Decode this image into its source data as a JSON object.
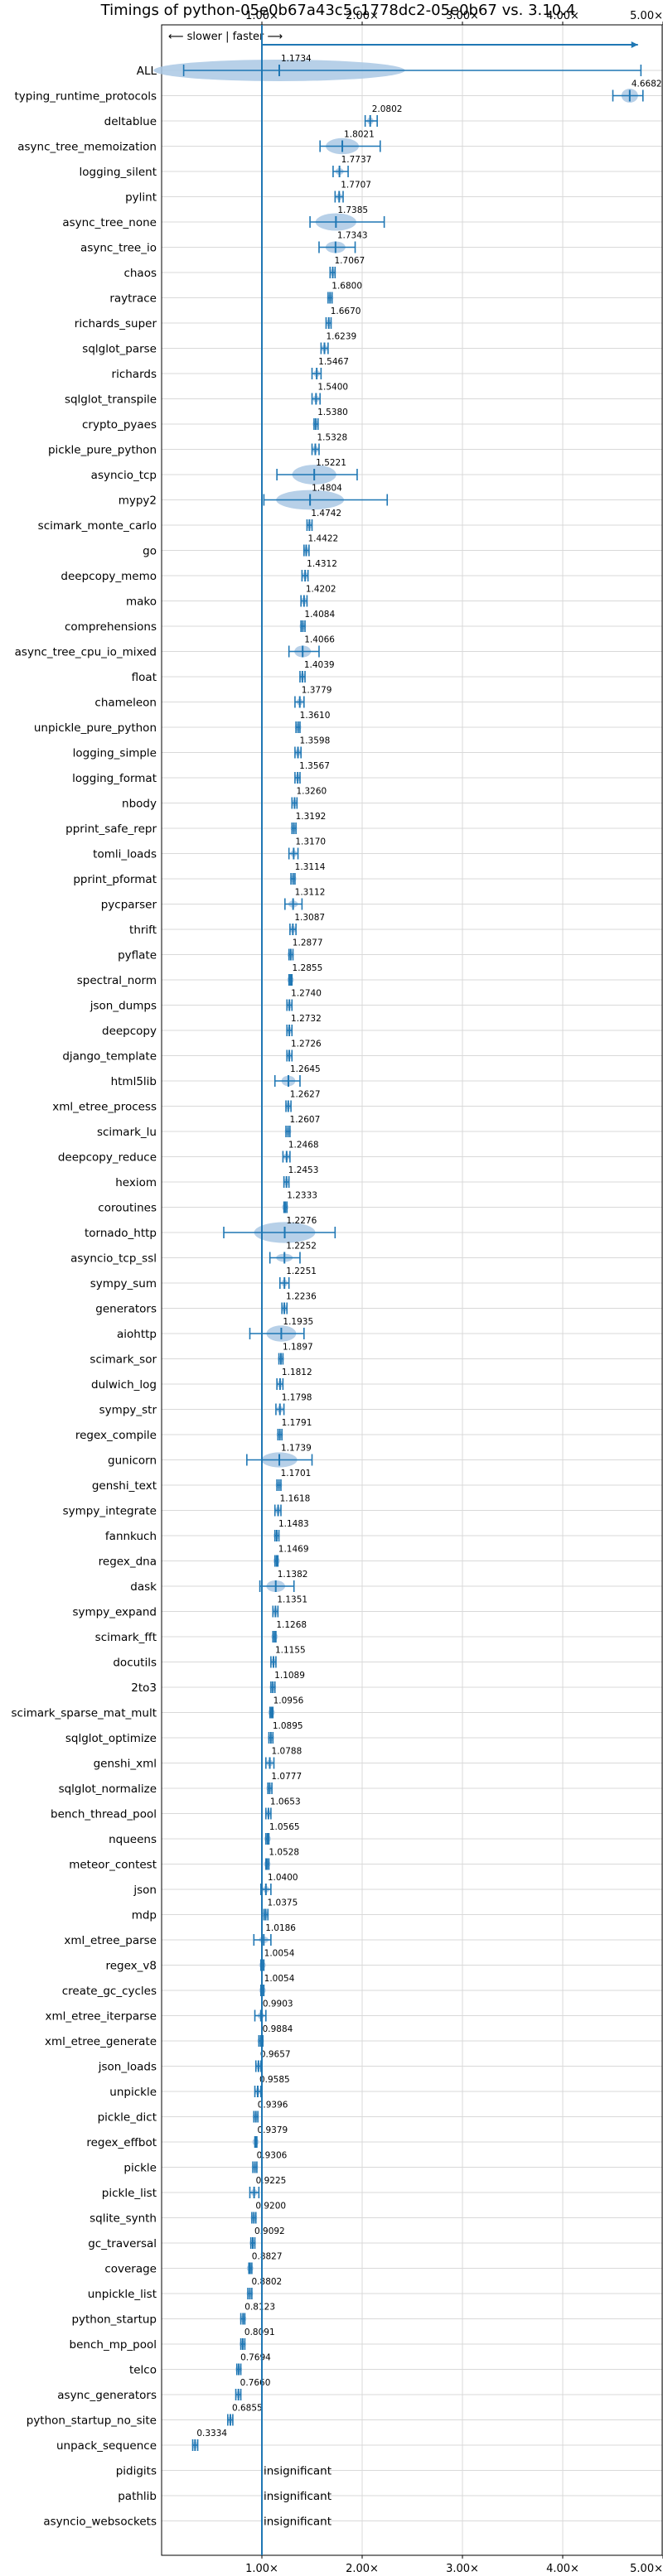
{
  "chart_data": {
    "type": "violin",
    "title": "Timings of python-05e0b67a43c5c1778dc2-05e0b67 vs. 3.10.4",
    "direction_label": "⟵ slower | faster ⟶",
    "xlim": [
      0.0,
      5.0
    ],
    "x_ticks": [
      1.0,
      2.0,
      3.0,
      4.0,
      5.0
    ],
    "x_tick_labels": [
      "1.00×",
      "2.00×",
      "3.00×",
      "4.00×",
      "5.00×"
    ],
    "insignificant_label": "insignificant",
    "colors": {
      "violin": "#aac8e4",
      "line": "#1f77b4",
      "outlier": "#d62728"
    },
    "benchmarks": [
      {
        "name": "ALL",
        "value": 1.1734,
        "label": "1.1734",
        "min": 0.22,
        "max": 4.78,
        "spread": 0.35
      },
      {
        "name": "typing_runtime_protocols",
        "value": 4.6682,
        "label": "4.6682",
        "min": 4.5,
        "max": 4.8,
        "spread": 0.12
      },
      {
        "name": "deltablue",
        "value": 2.0802,
        "label": "2.0802",
        "min": 2.03,
        "max": 2.15,
        "spread": 0.05
      },
      {
        "name": "async_tree_memoization",
        "value": 1.8021,
        "label": "1.8021",
        "min": 1.58,
        "max": 2.18,
        "spread": 0.14
      },
      {
        "name": "logging_silent",
        "value": 1.7737,
        "label": "1.7737",
        "min": 1.71,
        "max": 1.86,
        "spread": 0.05
      },
      {
        "name": "pylint",
        "value": 1.7707,
        "label": "1.7707",
        "min": 1.73,
        "max": 1.81,
        "spread": 0.04
      },
      {
        "name": "async_tree_none",
        "value": 1.7385,
        "label": "1.7385",
        "min": 1.48,
        "max": 2.22,
        "spread": 0.15
      },
      {
        "name": "async_tree_io",
        "value": 1.7343,
        "label": "1.7343",
        "min": 1.57,
        "max": 1.93,
        "spread": 0.1
      },
      {
        "name": "chaos",
        "value": 1.7067,
        "label": "1.7067",
        "min": 1.68,
        "max": 1.73,
        "spread": 0.03
      },
      {
        "name": "raytrace",
        "value": 1.68,
        "label": "1.6800",
        "min": 1.66,
        "max": 1.7,
        "spread": 0.03
      },
      {
        "name": "richards_super",
        "value": 1.667,
        "label": "1.6670",
        "min": 1.64,
        "max": 1.69,
        "spread": 0.03
      },
      {
        "name": "sqlglot_parse",
        "value": 1.6239,
        "label": "1.6239",
        "min": 1.59,
        "max": 1.66,
        "spread": 0.04
      },
      {
        "name": "richards",
        "value": 1.5467,
        "label": "1.5467",
        "min": 1.5,
        "max": 1.59,
        "spread": 0.04
      },
      {
        "name": "sqlglot_transpile",
        "value": 1.54,
        "label": "1.5400",
        "min": 1.5,
        "max": 1.58,
        "spread": 0.04
      },
      {
        "name": "crypto_pyaes",
        "value": 1.538,
        "label": "1.5380",
        "min": 1.52,
        "max": 1.56,
        "spread": 0.03
      },
      {
        "name": "pickle_pure_python",
        "value": 1.5328,
        "label": "1.5328",
        "min": 1.5,
        "max": 1.57,
        "spread": 0.03
      },
      {
        "name": "asyncio_tcp",
        "value": 1.5221,
        "label": "1.5221",
        "min": 1.15,
        "max": 1.95,
        "spread": 0.17
      },
      {
        "name": "mypy2",
        "value": 1.4804,
        "label": "1.4804",
        "min": 1.02,
        "max": 2.25,
        "spread": 0.17
      },
      {
        "name": "scimark_monte_carlo",
        "value": 1.4742,
        "label": "1.4742",
        "min": 1.45,
        "max": 1.5,
        "spread": 0.03
      },
      {
        "name": "go",
        "value": 1.4422,
        "label": "1.4422",
        "min": 1.42,
        "max": 1.47,
        "spread": 0.03
      },
      {
        "name": "deepcopy_memo",
        "value": 1.4312,
        "label": "1.4312",
        "min": 1.4,
        "max": 1.46,
        "spread": 0.03
      },
      {
        "name": "mako",
        "value": 1.4202,
        "label": "1.4202",
        "min": 1.39,
        "max": 1.45,
        "spread": 0.03
      },
      {
        "name": "comprehensions",
        "value": 1.4084,
        "label": "1.4084",
        "min": 1.39,
        "max": 1.43,
        "spread": 0.02
      },
      {
        "name": "async_tree_cpu_io_mixed",
        "value": 1.4066,
        "label": "1.4066",
        "min": 1.27,
        "max": 1.57,
        "spread": 0.1
      },
      {
        "name": "float",
        "value": 1.4039,
        "label": "1.4039",
        "min": 1.38,
        "max": 1.43,
        "spread": 0.03
      },
      {
        "name": "chameleon",
        "value": 1.3779,
        "label": "1.3779",
        "min": 1.33,
        "max": 1.42,
        "spread": 0.04
      },
      {
        "name": "unpickle_pure_python",
        "value": 1.361,
        "label": "1.3610",
        "min": 1.34,
        "max": 1.38,
        "spread": 0.02
      },
      {
        "name": "logging_simple",
        "value": 1.3598,
        "label": "1.3598",
        "min": 1.33,
        "max": 1.39,
        "spread": 0.03
      },
      {
        "name": "logging_format",
        "value": 1.3567,
        "label": "1.3567",
        "min": 1.33,
        "max": 1.38,
        "spread": 0.03
      },
      {
        "name": "nbody",
        "value": 1.326,
        "label": "1.3260",
        "min": 1.3,
        "max": 1.35,
        "spread": 0.02
      },
      {
        "name": "pprint_safe_repr",
        "value": 1.3192,
        "label": "1.3192",
        "min": 1.3,
        "max": 1.34,
        "spread": 0.02
      },
      {
        "name": "tomli_loads",
        "value": 1.317,
        "label": "1.3170",
        "min": 1.27,
        "max": 1.36,
        "spread": 0.04
      },
      {
        "name": "pprint_pformat",
        "value": 1.3114,
        "label": "1.3114",
        "min": 1.29,
        "max": 1.33,
        "spread": 0.02
      },
      {
        "name": "pycparser",
        "value": 1.3112,
        "label": "1.3112",
        "min": 1.23,
        "max": 1.4,
        "spread": 0.06
      },
      {
        "name": "thrift",
        "value": 1.3087,
        "label": "1.3087",
        "min": 1.28,
        "max": 1.34,
        "spread": 0.03
      },
      {
        "name": "pyflate",
        "value": 1.2877,
        "label": "1.2877",
        "min": 1.27,
        "max": 1.31,
        "spread": 0.02
      },
      {
        "name": "spectral_norm",
        "value": 1.2855,
        "label": "1.2855",
        "min": 1.27,
        "max": 1.3,
        "spread": 0.02
      },
      {
        "name": "json_dumps",
        "value": 1.274,
        "label": "1.2740",
        "min": 1.25,
        "max": 1.3,
        "spread": 0.02
      },
      {
        "name": "deepcopy",
        "value": 1.2732,
        "label": "1.2732",
        "min": 1.25,
        "max": 1.3,
        "spread": 0.02
      },
      {
        "name": "django_template",
        "value": 1.2726,
        "label": "1.2726",
        "min": 1.25,
        "max": 1.3,
        "spread": 0.02
      },
      {
        "name": "html5lib",
        "value": 1.2645,
        "label": "1.2645",
        "min": 1.13,
        "max": 1.38,
        "spread": 0.09
      },
      {
        "name": "xml_etree_process",
        "value": 1.2627,
        "label": "1.2627",
        "min": 1.24,
        "max": 1.29,
        "spread": 0.02
      },
      {
        "name": "scimark_lu",
        "value": 1.2607,
        "label": "1.2607",
        "min": 1.24,
        "max": 1.28,
        "spread": 0.02
      },
      {
        "name": "deepcopy_reduce",
        "value": 1.2468,
        "label": "1.2468",
        "min": 1.21,
        "max": 1.28,
        "spread": 0.03
      },
      {
        "name": "hexiom",
        "value": 1.2453,
        "label": "1.2453",
        "min": 1.22,
        "max": 1.27,
        "spread": 0.02
      },
      {
        "name": "coroutines",
        "value": 1.2333,
        "label": "1.2333",
        "min": 1.22,
        "max": 1.25,
        "spread": 0.01
      },
      {
        "name": "tornado_http",
        "value": 1.2276,
        "label": "1.2276",
        "min": 0.62,
        "max": 1.73,
        "spread": 0.18
      },
      {
        "name": "asyncio_tcp_ssl",
        "value": 1.2252,
        "label": "1.2252",
        "min": 1.08,
        "max": 1.38,
        "spread": 0.07
      },
      {
        "name": "sympy_sum",
        "value": 1.2251,
        "label": "1.2251",
        "min": 1.18,
        "max": 1.27,
        "spread": 0.03
      },
      {
        "name": "generators",
        "value": 1.2236,
        "label": "1.2236",
        "min": 1.2,
        "max": 1.25,
        "spread": 0.02
      },
      {
        "name": "aiohttp",
        "value": 1.1935,
        "label": "1.1935",
        "min": 0.88,
        "max": 1.42,
        "spread": 0.14
      },
      {
        "name": "scimark_sor",
        "value": 1.1897,
        "label": "1.1897",
        "min": 1.17,
        "max": 1.21,
        "spread": 0.02
      },
      {
        "name": "dulwich_log",
        "value": 1.1812,
        "label": "1.1812",
        "min": 1.15,
        "max": 1.21,
        "spread": 0.02
      },
      {
        "name": "sympy_str",
        "value": 1.1798,
        "label": "1.1798",
        "min": 1.14,
        "max": 1.22,
        "spread": 0.03
      },
      {
        "name": "regex_compile",
        "value": 1.1791,
        "label": "1.1791",
        "min": 1.16,
        "max": 1.2,
        "spread": 0.02
      },
      {
        "name": "gunicorn",
        "value": 1.1739,
        "label": "1.1739",
        "min": 0.85,
        "max": 1.5,
        "spread": 0.13
      },
      {
        "name": "genshi_text",
        "value": 1.1701,
        "label": "1.1701",
        "min": 1.15,
        "max": 1.19,
        "spread": 0.02
      },
      {
        "name": "sympy_integrate",
        "value": 1.1618,
        "label": "1.1618",
        "min": 1.13,
        "max": 1.19,
        "spread": 0.02
      },
      {
        "name": "fannkuch",
        "value": 1.1483,
        "label": "1.1483",
        "min": 1.13,
        "max": 1.17,
        "spread": 0.02
      },
      {
        "name": "regex_dna",
        "value": 1.1469,
        "label": "1.1469",
        "min": 1.13,
        "max": 1.16,
        "spread": 0.01
      },
      {
        "name": "dask",
        "value": 1.1382,
        "label": "1.1382",
        "min": 0.98,
        "max": 1.32,
        "spread": 0.1
      },
      {
        "name": "sympy_expand",
        "value": 1.1351,
        "label": "1.1351",
        "min": 1.11,
        "max": 1.16,
        "spread": 0.02
      },
      {
        "name": "scimark_fft",
        "value": 1.1268,
        "label": "1.1268",
        "min": 1.11,
        "max": 1.14,
        "spread": 0.01
      },
      {
        "name": "docutils",
        "value": 1.1155,
        "label": "1.1155",
        "min": 1.09,
        "max": 1.14,
        "spread": 0.02
      },
      {
        "name": "2to3",
        "value": 1.1089,
        "label": "1.1089",
        "min": 1.09,
        "max": 1.13,
        "spread": 0.02
      },
      {
        "name": "scimark_sparse_mat_mult",
        "value": 1.0956,
        "label": "1.0956",
        "min": 1.08,
        "max": 1.11,
        "spread": 0.01
      },
      {
        "name": "sqlglot_optimize",
        "value": 1.0895,
        "label": "1.0895",
        "min": 1.07,
        "max": 1.11,
        "spread": 0.01
      },
      {
        "name": "genshi_xml",
        "value": 1.0788,
        "label": "1.0788",
        "min": 1.04,
        "max": 1.12,
        "spread": 0.03
      },
      {
        "name": "sqlglot_normalize",
        "value": 1.0777,
        "label": "1.0777",
        "min": 1.06,
        "max": 1.1,
        "spread": 0.01
      },
      {
        "name": "bench_thread_pool",
        "value": 1.0653,
        "label": "1.0653",
        "min": 1.04,
        "max": 1.09,
        "spread": 0.02
      },
      {
        "name": "nqueens",
        "value": 1.0565,
        "label": "1.0565",
        "min": 1.04,
        "max": 1.07,
        "spread": 0.01
      },
      {
        "name": "meteor_contest",
        "value": 1.0528,
        "label": "1.0528",
        "min": 1.04,
        "max": 1.07,
        "spread": 0.01
      },
      {
        "name": "json",
        "value": 1.04,
        "label": "1.0400",
        "min": 0.99,
        "max": 1.09,
        "spread": 0.03
      },
      {
        "name": "mdp",
        "value": 1.0375,
        "label": "1.0375",
        "min": 1.02,
        "max": 1.06,
        "spread": 0.01
      },
      {
        "name": "xml_etree_parse",
        "value": 1.0186,
        "label": "1.0186",
        "min": 0.92,
        "max": 1.09,
        "spread": 0.05
      },
      {
        "name": "regex_v8",
        "value": 1.0054,
        "label": "1.0054",
        "min": 0.99,
        "max": 1.02,
        "spread": 0.01
      },
      {
        "name": "create_gc_cycles",
        "value": 1.0054,
        "label": "1.0054",
        "min": 0.99,
        "max": 1.02,
        "spread": 0.01
      },
      {
        "name": "xml_etree_iterparse",
        "value": 0.9903,
        "label": "0.9903",
        "min": 0.93,
        "max": 1.04,
        "spread": 0.04
      },
      {
        "name": "xml_etree_generate",
        "value": 0.9884,
        "label": "0.9884",
        "min": 0.97,
        "max": 1.01,
        "spread": 0.01
      },
      {
        "name": "json_loads",
        "value": 0.9657,
        "label": "0.9657",
        "min": 0.94,
        "max": 0.99,
        "spread": 0.02
      },
      {
        "name": "unpickle",
        "value": 0.9585,
        "label": "0.9585",
        "min": 0.93,
        "max": 0.99,
        "spread": 0.02
      },
      {
        "name": "pickle_dict",
        "value": 0.9396,
        "label": "0.9396",
        "min": 0.92,
        "max": 0.96,
        "spread": 0.01
      },
      {
        "name": "regex_effbot",
        "value": 0.9379,
        "label": "0.9379",
        "min": 0.93,
        "max": 0.95,
        "spread": 0.01
      },
      {
        "name": "pickle",
        "value": 0.9306,
        "label": "0.9306",
        "min": 0.91,
        "max": 0.95,
        "spread": 0.01
      },
      {
        "name": "pickle_list",
        "value": 0.9225,
        "label": "0.9225",
        "min": 0.88,
        "max": 0.97,
        "spread": 0.03
      },
      {
        "name": "sqlite_synth",
        "value": 0.92,
        "label": "0.9200",
        "min": 0.9,
        "max": 0.94,
        "spread": 0.01
      },
      {
        "name": "gc_traversal",
        "value": 0.9092,
        "label": "0.9092",
        "min": 0.89,
        "max": 0.93,
        "spread": 0.01
      },
      {
        "name": "coverage",
        "value": 0.8827,
        "label": "0.8827",
        "min": 0.87,
        "max": 0.9,
        "spread": 0.01
      },
      {
        "name": "unpickle_list",
        "value": 0.8802,
        "label": "0.8802",
        "min": 0.86,
        "max": 0.9,
        "spread": 0.01
      },
      {
        "name": "python_startup",
        "value": 0.8123,
        "label": "0.8123",
        "min": 0.79,
        "max": 0.83,
        "spread": 0.01
      },
      {
        "name": "bench_mp_pool",
        "value": 0.8091,
        "label": "0.8091",
        "min": 0.79,
        "max": 0.83,
        "spread": 0.01
      },
      {
        "name": "telco",
        "value": 0.7694,
        "label": "0.7694",
        "min": 0.75,
        "max": 0.79,
        "spread": 0.01
      },
      {
        "name": "async_generators",
        "value": 0.766,
        "label": "0.7660",
        "min": 0.74,
        "max": 0.79,
        "spread": 0.01
      },
      {
        "name": "python_startup_no_site",
        "value": 0.6855,
        "label": "0.6855",
        "min": 0.66,
        "max": 0.71,
        "spread": 0.01
      },
      {
        "name": "unpack_sequence",
        "value": 0.3334,
        "label": "0.3334",
        "min": 0.31,
        "max": 0.36,
        "spread": 0.01
      },
      {
        "name": "pidigits",
        "value": null,
        "label": "insignificant"
      },
      {
        "name": "pathlib",
        "value": null,
        "label": "insignificant"
      },
      {
        "name": "asyncio_websockets",
        "value": null,
        "label": "insignificant"
      }
    ]
  }
}
